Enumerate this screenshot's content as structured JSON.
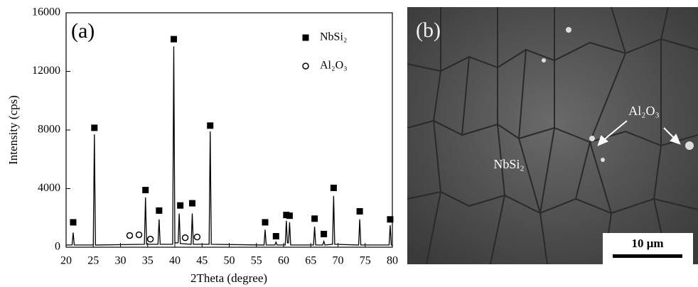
{
  "chart_data": {
    "type": "line",
    "panel_label": "(a)",
    "x_label": "2Theta (degree)",
    "y_label": "Intensity (cps)",
    "xlim": [
      20,
      80
    ],
    "xticks": [
      20,
      25,
      30,
      35,
      40,
      45,
      50,
      55,
      60,
      65,
      70,
      75,
      80
    ],
    "ylim": [
      0,
      16000
    ],
    "yticks": [
      0,
      4000,
      8000,
      12000,
      16000
    ],
    "legend": "upper right",
    "pattern": {
      "color": "#000000",
      "x": [
        20,
        21.1,
        21.3,
        21.5,
        25.0,
        25.2,
        25.4,
        34.4,
        34.6,
        34.8,
        36.9,
        37.1,
        37.3,
        39.6,
        39.8,
        40.0,
        40.6,
        40.8,
        41.0,
        43.0,
        43.2,
        43.4,
        46.3,
        46.5,
        46.7,
        56.4,
        56.6,
        56.8,
        58.4,
        58.6,
        58.8,
        60.3,
        60.5,
        60.7,
        60.9,
        61.1,
        61.3,
        65.5,
        65.7,
        65.9,
        67.2,
        67.4,
        67.6,
        69.0,
        69.2,
        69.4,
        73.8,
        74.0,
        74.2,
        79.4,
        79.6,
        79.8,
        80
      ],
      "values": [
        150,
        150,
        1000,
        150,
        150,
        7700,
        150,
        200,
        3400,
        200,
        200,
        1900,
        200,
        200,
        13700,
        300,
        300,
        2300,
        250,
        200,
        2300,
        200,
        200,
        7900,
        200,
        150,
        1200,
        150,
        150,
        350,
        150,
        150,
        1800,
        300,
        300,
        1700,
        150,
        150,
        1400,
        150,
        150,
        400,
        150,
        200,
        3500,
        200,
        150,
        1900,
        150,
        150,
        1500,
        150,
        150
      ]
    },
    "series": [
      {
        "name": "NbSi₂",
        "marker": "square",
        "color": "#000000",
        "x": [
          21.3,
          25.2,
          34.6,
          37.1,
          39.8,
          41.0,
          43.2,
          46.5,
          56.6,
          58.6,
          60.5,
          61.1,
          65.7,
          67.4,
          69.2,
          74.0,
          79.6
        ],
        "values": [
          1700,
          8150,
          3900,
          2500,
          14200,
          2850,
          3000,
          8300,
          1700,
          750,
          2200,
          2150,
          1950,
          900,
          4050,
          2450,
          1900
        ]
      },
      {
        "name": "Al₂O₃",
        "marker": "circle",
        "color": "#000000",
        "x": [
          31.7,
          33.4,
          35.5,
          41.9,
          44.1
        ],
        "values": [
          800,
          850,
          550,
          650,
          700
        ]
      }
    ]
  },
  "image_panel": {
    "panel_label": "(b)",
    "annotations": [
      "Al₂O₃",
      "NbSi₂"
    ],
    "scale_bar": "10 μm"
  }
}
